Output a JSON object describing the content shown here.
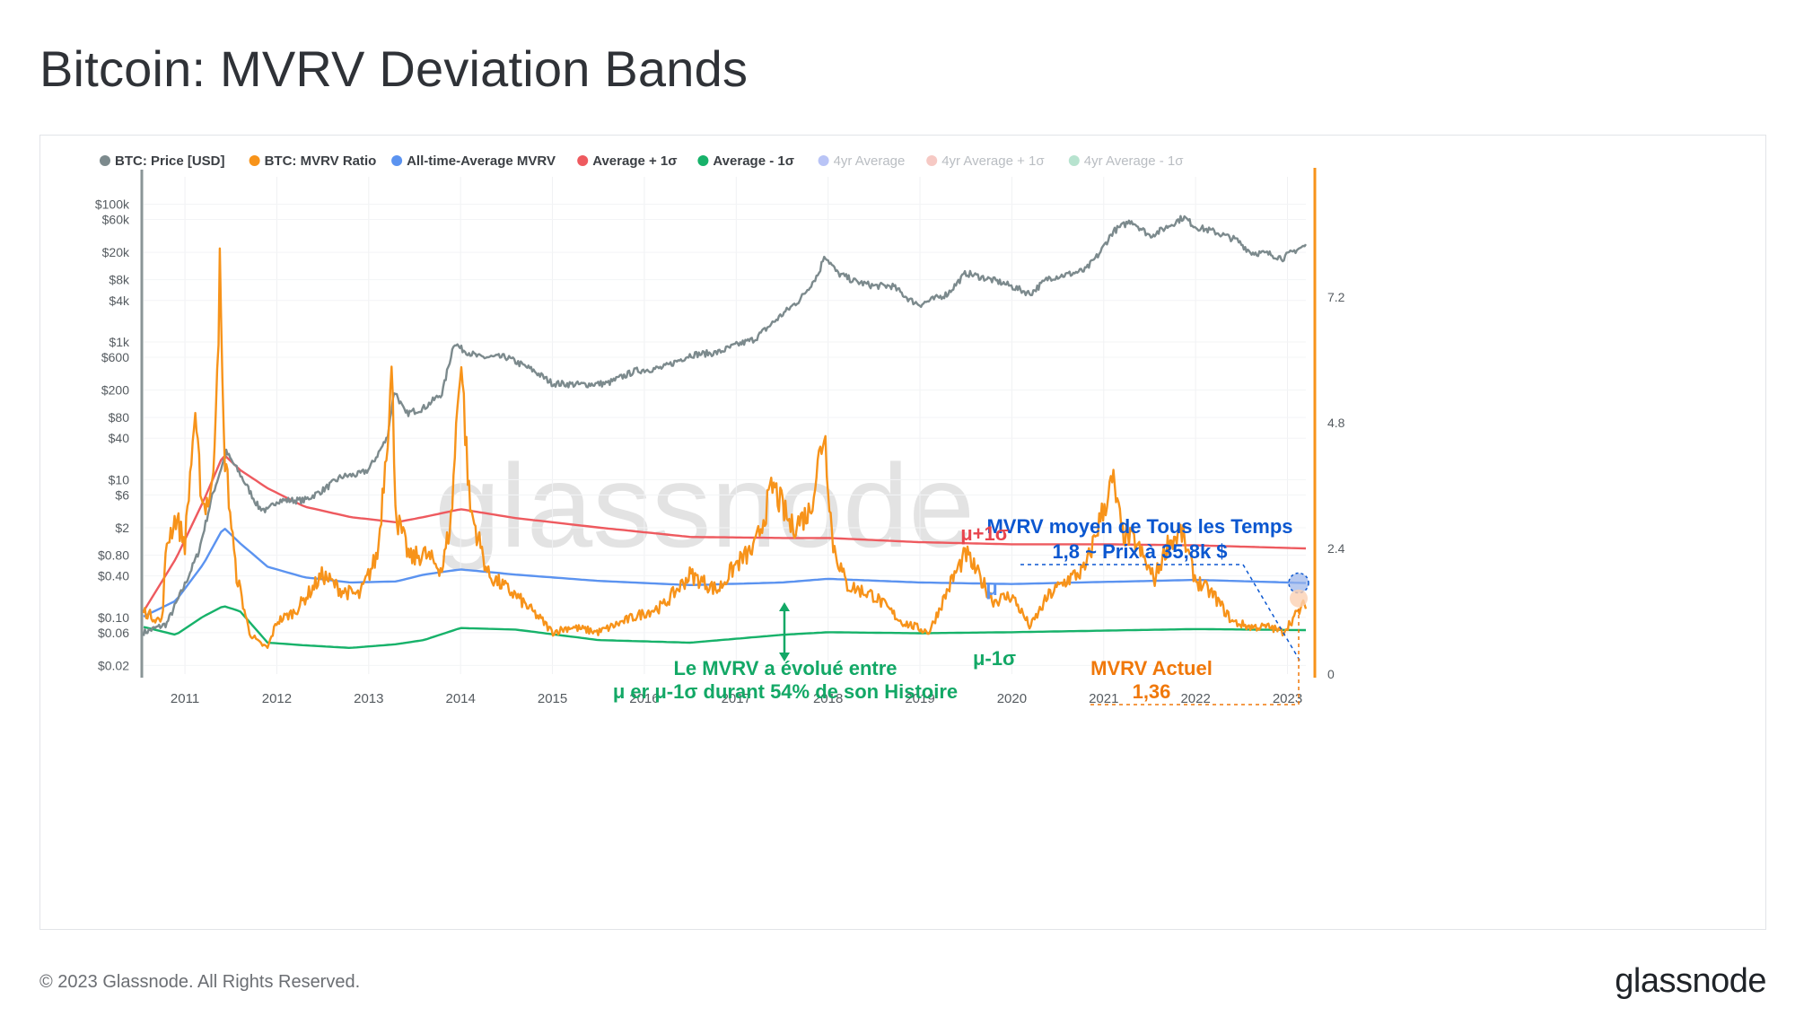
{
  "title": "Bitcoin: MVRV Deviation Bands",
  "footer": {
    "copyright": "© 2023 Glassnode. All Rights Reserved.",
    "brand": "glassnode"
  },
  "watermark": "glassnode",
  "colors": {
    "price": "#7c8a8d",
    "mvrv": "#f7931a",
    "avg": "#5b93f0",
    "plus1": "#ee5a5f",
    "minus1": "#17b26a",
    "annot_blue": "#0b57d0",
    "annot_green": "#13a866",
    "annot_orange": "#f0780a",
    "annot_red": "#e8454d"
  },
  "chart_data": {
    "type": "line",
    "legend": [
      {
        "label": "BTC: Price [USD]",
        "color": "#7c8a8d",
        "active": true
      },
      {
        "label": "BTC: MVRV Ratio",
        "color": "#f7931a",
        "active": true
      },
      {
        "label": "All-time-Average MVRV",
        "color": "#5b93f0",
        "active": true
      },
      {
        "label": "Average + 1σ",
        "color": "#ee5a5f",
        "active": true
      },
      {
        "label": "Average - 1σ",
        "color": "#17b26a",
        "active": true
      },
      {
        "label": "4yr Average",
        "color": "#b9c4f6",
        "active": false
      },
      {
        "label": "4yr Average + 1σ",
        "color": "#f6c9c4",
        "active": false
      },
      {
        "label": "4yr Average - 1σ",
        "color": "#b7e3cf",
        "active": false
      }
    ],
    "x_ticks": [
      "2011",
      "2012",
      "2013",
      "2014",
      "2015",
      "2016",
      "2017",
      "2018",
      "2019",
      "2020",
      "2021",
      "2022",
      "2023"
    ],
    "xlim": [
      2010.55,
      2023.2
    ],
    "y_left_scale": "log",
    "y_left_ticks": [
      "$0.02",
      "$0.06",
      "$0.10",
      "$0.40",
      "$0.80",
      "$2",
      "$6",
      "$10",
      "$40",
      "$80",
      "$200",
      "$600",
      "$1k",
      "$4k",
      "$8k",
      "$20k",
      "$60k",
      "$100k"
    ],
    "y_left_tick_values": [
      0.02,
      0.06,
      0.1,
      0.4,
      0.8,
      2,
      6,
      10,
      40,
      80,
      200,
      600,
      1000,
      4000,
      8000,
      20000,
      60000,
      100000
    ],
    "y_right_ticks": [
      "0",
      "2.4",
      "4.8",
      "7.2"
    ],
    "y_right_tick_values": [
      0,
      2.4,
      4.8,
      7.2
    ],
    "y_right_lim": [
      0,
      9.5
    ],
    "series": [
      {
        "name": "BTC: Price [USD]",
        "axis": "left",
        "x": [
          2010.55,
          2010.8,
          2011.0,
          2011.15,
          2011.3,
          2011.45,
          2011.6,
          2011.8,
          2011.9,
          2012.0,
          2012.3,
          2012.5,
          2012.7,
          2012.9,
          2013.0,
          2013.2,
          2013.28,
          2013.4,
          2013.6,
          2013.8,
          2013.93,
          2014.0,
          2014.2,
          2014.5,
          2014.8,
          2015.0,
          2015.3,
          2015.6,
          2015.9,
          2016.2,
          2016.5,
          2016.8,
          2017.0,
          2017.2,
          2017.5,
          2017.7,
          2017.9,
          2017.96,
          2018.1,
          2018.3,
          2018.5,
          2018.7,
          2018.9,
          2019.0,
          2019.3,
          2019.5,
          2019.7,
          2019.9,
          2020.2,
          2020.4,
          2020.6,
          2020.8,
          2020.95,
          2021.1,
          2021.3,
          2021.5,
          2021.6,
          2021.87,
          2022.0,
          2022.2,
          2022.45,
          2022.6,
          2022.8,
          2022.95,
          2023.1,
          2023.2
        ],
        "values": [
          0.06,
          0.08,
          0.3,
          0.9,
          6,
          25,
          12,
          4,
          3.5,
          5,
          5,
          7,
          11,
          12,
          14,
          40,
          200,
          90,
          110,
          180,
          1000,
          800,
          600,
          600,
          380,
          250,
          240,
          250,
          380,
          420,
          650,
          700,
          900,
          1100,
          2500,
          4200,
          10000,
          18500,
          10000,
          7500,
          6500,
          6500,
          4000,
          3500,
          5000,
          10000,
          8500,
          7200,
          5000,
          8500,
          9500,
          11000,
          19000,
          40000,
          58000,
          35000,
          40000,
          65000,
          47000,
          40000,
          30000,
          20000,
          19000,
          16500,
          22000,
          25000
        ]
      },
      {
        "name": "BTC: MVRV Ratio",
        "axis": "right",
        "x": [
          2010.55,
          2010.75,
          2010.8,
          2010.9,
          2011.0,
          2011.1,
          2011.2,
          2011.3,
          2011.38,
          2011.42,
          2011.55,
          2011.7,
          2011.8,
          2011.9,
          2012.0,
          2012.2,
          2012.5,
          2012.7,
          2012.9,
          2013.1,
          2013.25,
          2013.3,
          2013.45,
          2013.6,
          2013.8,
          2013.9,
          2014.0,
          2014.1,
          2014.3,
          2014.6,
          2014.9,
          2015.0,
          2015.2,
          2015.5,
          2015.9,
          2016.2,
          2016.5,
          2016.8,
          2017.0,
          2017.2,
          2017.4,
          2017.6,
          2017.8,
          2017.96,
          2018.05,
          2018.2,
          2018.5,
          2018.8,
          2018.95,
          2019.1,
          2019.35,
          2019.5,
          2019.8,
          2020.0,
          2020.2,
          2020.4,
          2020.6,
          2020.8,
          2020.95,
          2021.1,
          2021.2,
          2021.35,
          2021.55,
          2021.7,
          2021.85,
          2022.0,
          2022.2,
          2022.4,
          2022.6,
          2022.8,
          2022.95,
          2023.1,
          2023.2
        ],
        "values": [
          1.2,
          1.0,
          2.5,
          3.0,
          2.5,
          4.8,
          3.2,
          3.5,
          7.6,
          4.5,
          2.0,
          0.8,
          0.6,
          0.5,
          1.0,
          1.2,
          1.9,
          1.6,
          1.5,
          2.3,
          5.7,
          3.0,
          2.2,
          2.3,
          2.0,
          3.0,
          6.2,
          3.2,
          1.9,
          1.5,
          1.0,
          0.8,
          0.9,
          0.8,
          1.1,
          1.3,
          1.9,
          1.6,
          2.1,
          2.4,
          3.6,
          2.8,
          3.1,
          4.7,
          2.5,
          1.7,
          1.5,
          1.0,
          0.9,
          0.8,
          1.8,
          2.3,
          1.4,
          1.5,
          0.9,
          1.5,
          1.8,
          2.0,
          2.9,
          3.7,
          2.7,
          2.5,
          1.8,
          2.5,
          2.7,
          1.8,
          1.5,
          1.0,
          0.9,
          0.9,
          0.8,
          1.15,
          1.36
        ]
      },
      {
        "name": "All-time-Average MVRV",
        "axis": "right",
        "x": [
          2010.55,
          2010.9,
          2011.2,
          2011.42,
          2011.6,
          2011.9,
          2012.3,
          2012.8,
          2013.3,
          2013.6,
          2014.0,
          2014.6,
          2015.5,
          2016.5,
          2017.5,
          2018.0,
          2019.0,
          2020.0,
          2021.0,
          2022.0,
          2023.2
        ],
        "values": [
          1.1,
          1.4,
          2.1,
          2.8,
          2.5,
          2.05,
          1.85,
          1.75,
          1.77,
          1.9,
          2.0,
          1.9,
          1.78,
          1.7,
          1.75,
          1.82,
          1.75,
          1.72,
          1.76,
          1.8,
          1.74
        ]
      },
      {
        "name": "Average + 1σ",
        "axis": "right",
        "x": [
          2010.55,
          2010.9,
          2011.2,
          2011.42,
          2011.6,
          2011.9,
          2012.3,
          2012.8,
          2013.3,
          2013.6,
          2014.0,
          2014.6,
          2015.5,
          2016.5,
          2017.5,
          2018.0,
          2019.0,
          2020.0,
          2021.0,
          2022.0,
          2023.2
        ],
        "values": [
          1.2,
          2.2,
          3.3,
          4.2,
          3.9,
          3.55,
          3.2,
          3.0,
          2.9,
          3.0,
          3.15,
          2.98,
          2.8,
          2.62,
          2.6,
          2.6,
          2.52,
          2.48,
          2.48,
          2.46,
          2.4
        ]
      },
      {
        "name": "Average - 1σ",
        "axis": "right",
        "x": [
          2010.55,
          2010.9,
          2011.2,
          2011.42,
          2011.6,
          2011.9,
          2012.3,
          2012.8,
          2013.3,
          2013.6,
          2014.0,
          2014.6,
          2015.5,
          2016.5,
          2017.5,
          2018.0,
          2019.0,
          2020.0,
          2021.0,
          2022.0,
          2023.2
        ],
        "values": [
          0.9,
          0.75,
          1.1,
          1.3,
          1.2,
          0.6,
          0.55,
          0.5,
          0.57,
          0.65,
          0.88,
          0.85,
          0.65,
          0.6,
          0.75,
          0.8,
          0.78,
          0.8,
          0.83,
          0.86,
          0.84
        ]
      }
    ]
  },
  "annotations": {
    "all_time_avg_line1": "MVRV moyen de Tous les Temps",
    "all_time_avg_line2": "1,8 ~ Prix à 35,8k $",
    "plus1_label": "μ+1σ",
    "mu_label": "μ",
    "minus1_label": "μ-1σ",
    "evolution_line1": "Le MVRV a évolué entre",
    "evolution_line2": "μ er μ-1σ durant 54% de son Histoire",
    "current_line1": "MVRV Actuel",
    "current_line2": "1,36"
  }
}
